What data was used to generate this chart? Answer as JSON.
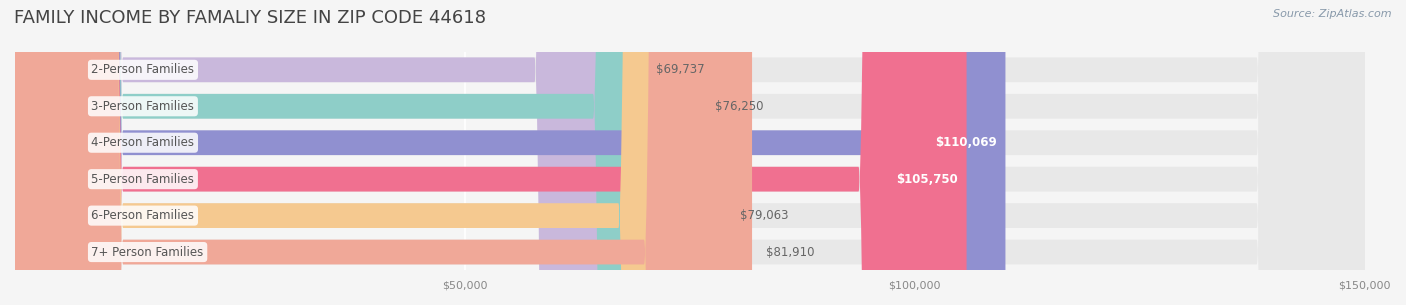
{
  "title": "FAMILY INCOME BY FAMALIY SIZE IN ZIP CODE 44618",
  "source": "Source: ZipAtlas.com",
  "categories": [
    "2-Person Families",
    "3-Person Families",
    "4-Person Families",
    "5-Person Families",
    "6-Person Families",
    "7+ Person Families"
  ],
  "values": [
    69737,
    76250,
    110069,
    105750,
    79063,
    81910
  ],
  "bar_colors": [
    "#c9b8dc",
    "#8ecec8",
    "#9090d0",
    "#f07090",
    "#f5c990",
    "#f0a898"
  ],
  "label_colors": [
    "#888888",
    "#888888",
    "#ffffff",
    "#ffffff",
    "#888888",
    "#888888"
  ],
  "bg_color": "#f5f5f5",
  "bar_bg_color": "#e8e8e8",
  "xmin": 0,
  "xmax": 150000,
  "xticks": [
    50000,
    100000,
    150000
  ],
  "xtick_labels": [
    "$50,000",
    "$100,000",
    "$150,000"
  ],
  "title_fontsize": 13,
  "label_fontsize": 8.5,
  "tick_fontsize": 8,
  "source_fontsize": 8
}
